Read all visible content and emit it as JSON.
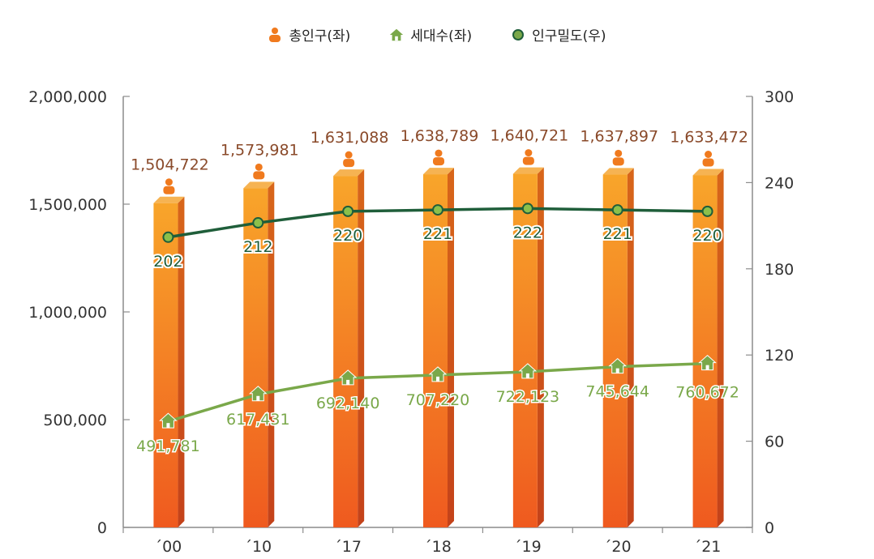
{
  "chart_data": {
    "type": "bar",
    "categories": [
      "´00",
      "´10",
      "´17",
      "´18",
      "´19",
      "´20",
      "´21"
    ],
    "series": [
      {
        "name": "총인구(좌)",
        "kind": "bar",
        "axis": "left",
        "values": [
          1504722,
          1573981,
          1631088,
          1638789,
          1640721,
          1637897,
          1633472
        ],
        "labels": [
          "1,504,722",
          "1,573,981",
          "1,631,088",
          "1,638,789",
          "1,640,721",
          "1,637,897",
          "1,633,472"
        ],
        "color": "#f07a1e"
      },
      {
        "name": "세대수(좌)",
        "kind": "line",
        "axis": "left",
        "values": [
          491781,
          617431,
          692140,
          707220,
          722123,
          745644,
          760672
        ],
        "labels": [
          "491,781",
          "617,431",
          "692,140",
          "707,220",
          "722,123",
          "745,644",
          "760,672"
        ],
        "color": "#7aa84a"
      },
      {
        "name": "인구밀도(우)",
        "kind": "line",
        "axis": "right",
        "values": [
          202,
          212,
          220,
          221,
          222,
          221,
          220
        ],
        "labels": [
          "202",
          "212",
          "220",
          "221",
          "222",
          "221",
          "220"
        ],
        "color": "#1f5e3a"
      }
    ],
    "y_left": {
      "min": 0,
      "max": 2000000,
      "ticks": [
        "0",
        "500,000",
        "1,000,000",
        "1,500,000",
        "2,000,000"
      ]
    },
    "y_right": {
      "min": 0,
      "max": 300,
      "ticks": [
        "0",
        "60",
        "120",
        "180",
        "240",
        "300"
      ]
    },
    "legend_position": "top-center",
    "grid": false
  }
}
